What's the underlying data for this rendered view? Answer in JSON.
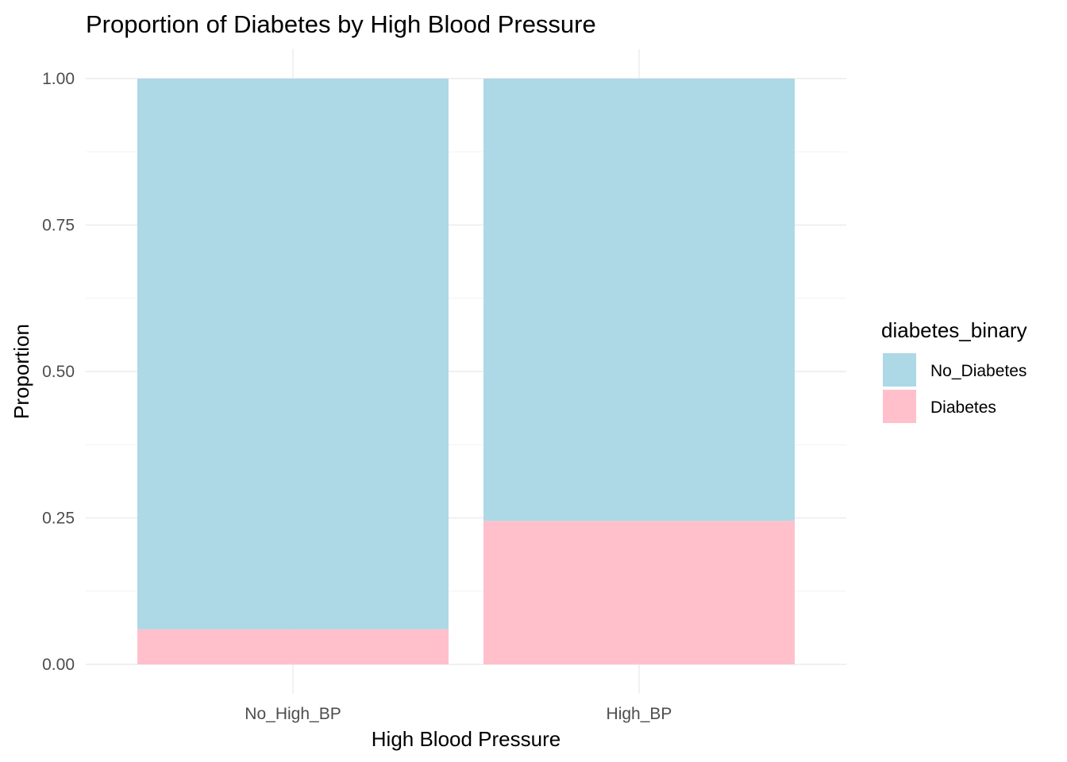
{
  "chart_data": {
    "type": "bar",
    "stacked": true,
    "title": "Proportion of Diabetes by High Blood Pressure",
    "xlabel": "High Blood Pressure",
    "ylabel": "Proportion",
    "categories": [
      "No_High_BP",
      "High_BP"
    ],
    "series": [
      {
        "name": "No_Diabetes",
        "color": "#add8e6",
        "values": [
          0.94,
          0.755
        ]
      },
      {
        "name": "Diabetes",
        "color": "#ffc0cb",
        "values": [
          0.06,
          0.245
        ]
      }
    ],
    "ylim": [
      0,
      1
    ],
    "yticks": [
      "0.00",
      "0.25",
      "0.50",
      "0.75",
      "1.00"
    ],
    "grid": true,
    "legend": {
      "title": "diabetes_binary",
      "placement": "right",
      "entries": [
        "No_Diabetes",
        "Diabetes"
      ]
    }
  }
}
